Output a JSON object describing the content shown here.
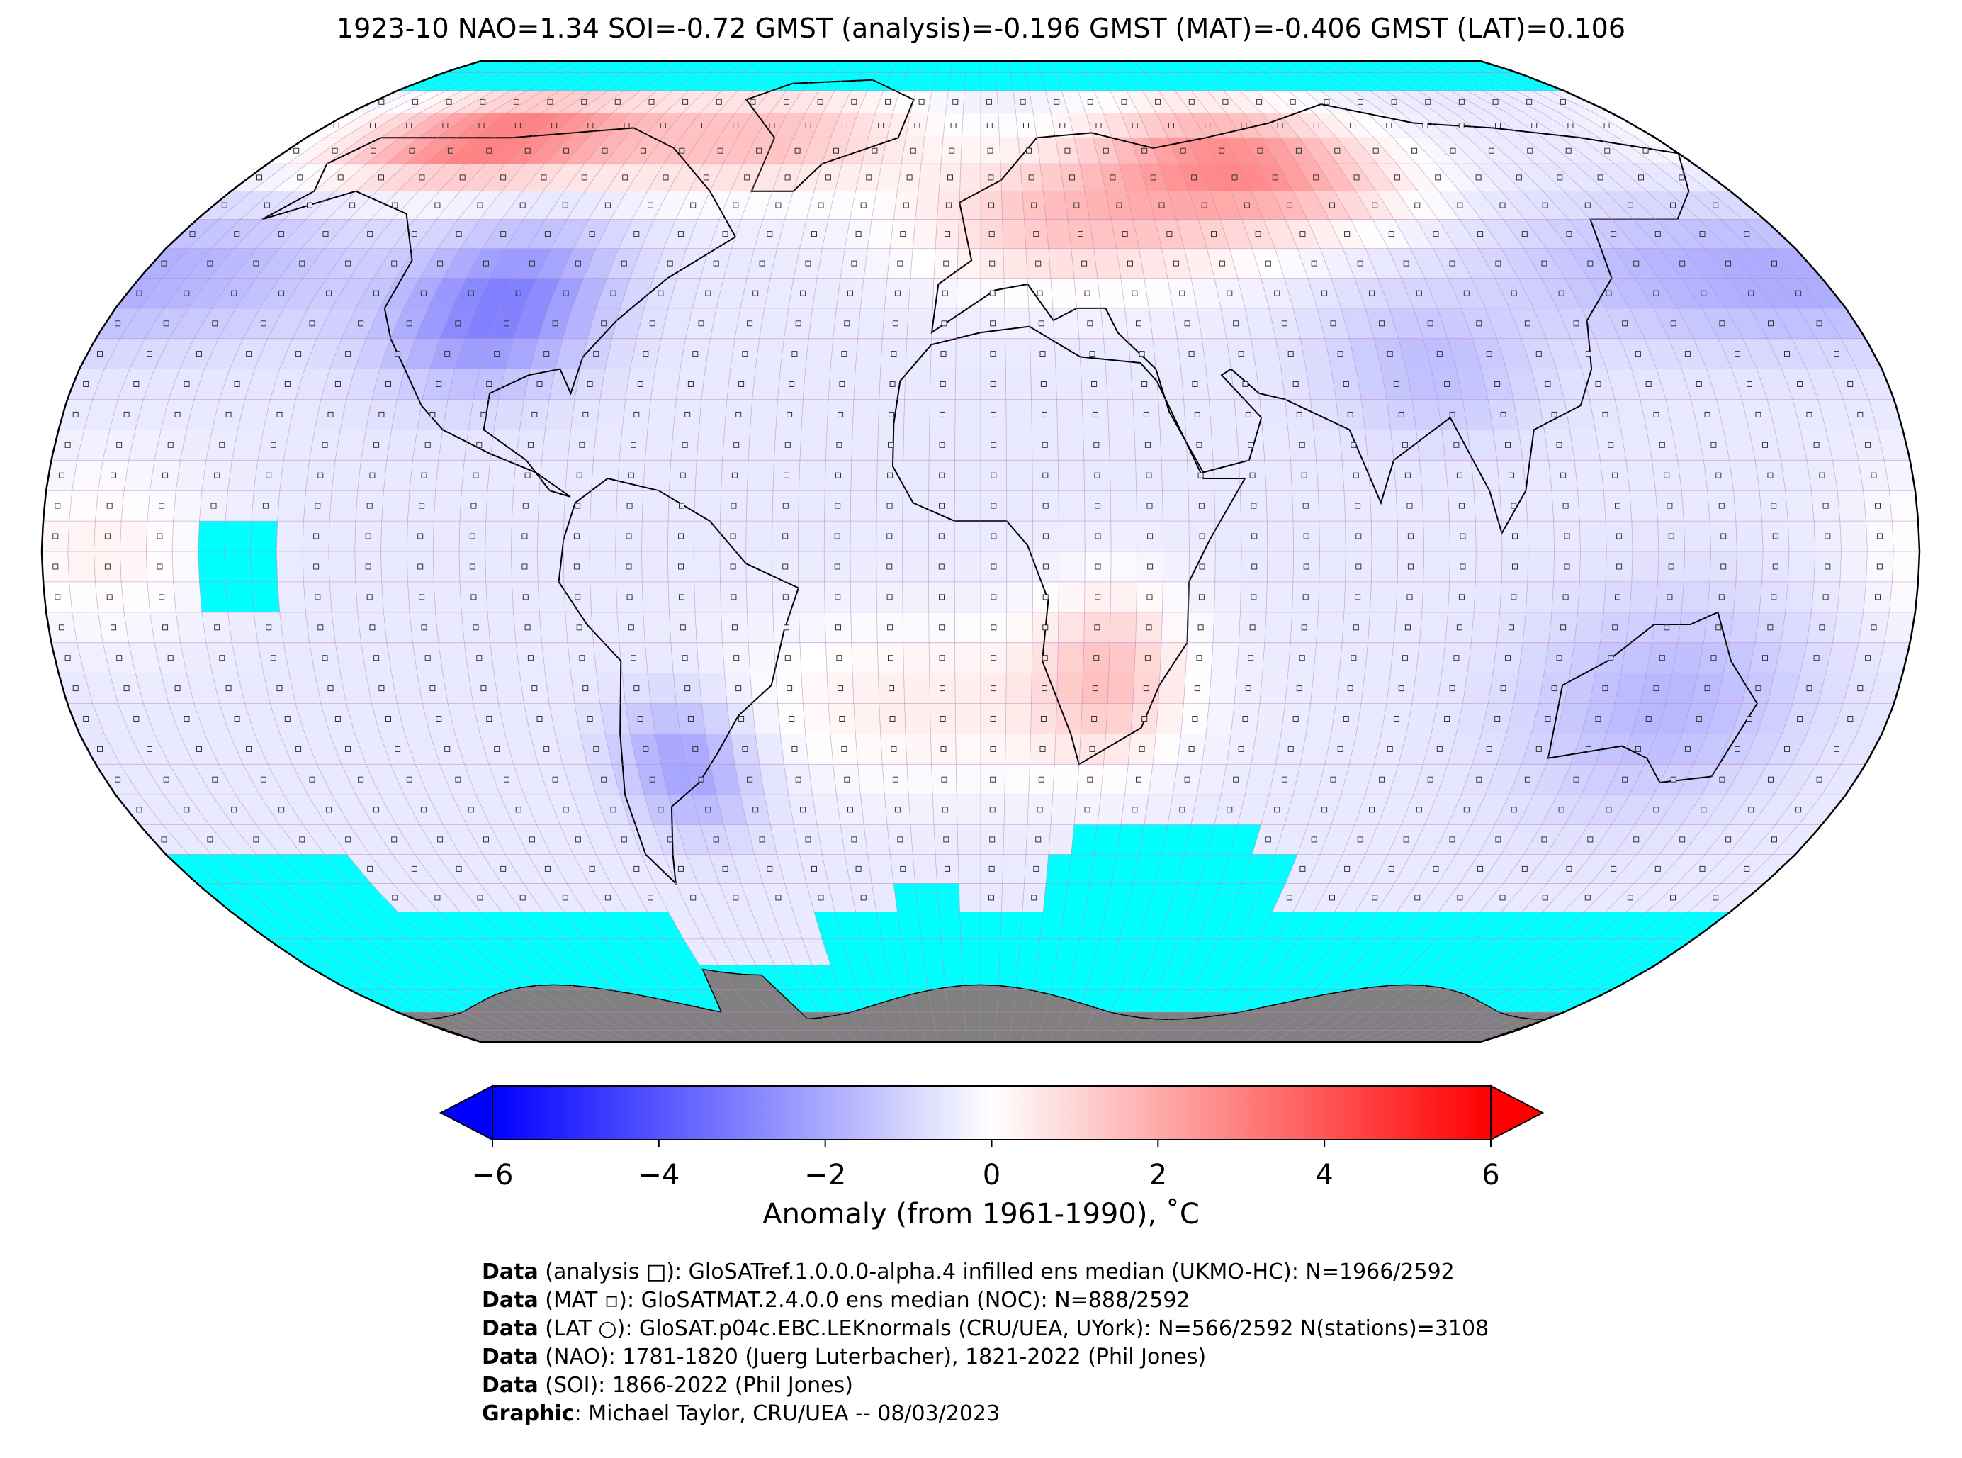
{
  "title": "1923-10 NAO=1.34 SOI=-0.72 GMST (analysis)=-0.196 GMST (MAT)=-0.406 GMST (LAT)=0.106",
  "colorbar": {
    "ticks": [
      "−6",
      "−4",
      "−2",
      "0",
      "2",
      "4",
      "6"
    ],
    "tick_values": [
      -6,
      -4,
      -2,
      0,
      2,
      4,
      6
    ],
    "label": "Anomaly (from 1961-1990), ˚C",
    "colors": {
      "min": "#0000ff",
      "mid": "#ffffff",
      "max": "#ff0000"
    }
  },
  "map": {
    "projection": "Robinson",
    "grid": "5x5 degree",
    "colors": {
      "no_data": "#00ffff",
      "antarctica": "#808080",
      "gridline": "#c080c0"
    }
  },
  "credits": [
    {
      "label": "Data",
      "text": " (analysis □): GloSATref.1.0.0.0-alpha.4 infilled ens median (UKMO-HC): N=1966/2592"
    },
    {
      "label": "Data",
      "text": " (MAT ▫): GloSATMAT.2.4.0.0 ens median (NOC): N=888/2592"
    },
    {
      "label": "Data",
      "text": " (LAT ○): GloSAT.p04c.EBC.LEKnormals (CRU/UEA, UYork): N=566/2592 N(stations)=3108"
    },
    {
      "label": "Data",
      "text": " (NAO): 1781-1820 (Juerg Luterbacher), 1821-2022 (Phil Jones)"
    },
    {
      "label": "Data",
      "text": " (SOI): 1866-2022 (Phil Jones)"
    },
    {
      "label": "Graphic",
      "text": ": Michael Taylor, CRU/UEA -- 08/03/2023"
    }
  ]
}
